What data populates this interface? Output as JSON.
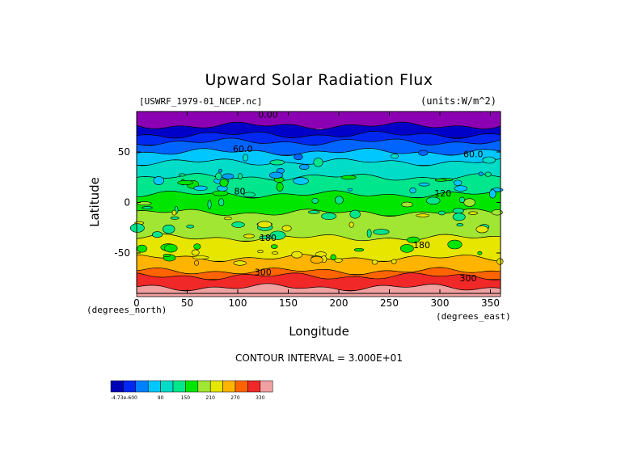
{
  "chart_data": {
    "type": "heatmap",
    "title": "Upward Solar Radiation Flux",
    "source_label": "[USWRF_1979-01_NCEP.nc]",
    "units_label": "(units:W/m^2)",
    "xlabel": "Longitude",
    "ylabel": "Latitude",
    "x_unit_label": "(degrees_east)",
    "y_unit_label": "(degrees_north)",
    "xlim": [
      0,
      360
    ],
    "ylim": [
      -90,
      90
    ],
    "x_ticks": [
      0,
      50,
      100,
      150,
      200,
      250,
      300,
      350
    ],
    "y_ticks": [
      -50,
      0,
      50
    ],
    "x_tick_labels": [
      "0",
      "50",
      "100",
      "150",
      "200",
      "250",
      "300",
      "350"
    ],
    "y_tick_labels": [
      "-50",
      "0",
      "50"
    ],
    "contour_interval_label": "CONTOUR INTERVAL = 3.000E+01",
    "contour_labels": [
      {
        "text": "0.00",
        "lon": 130,
        "lat": 84
      },
      {
        "text": "60.0",
        "lon": 105,
        "lat": 50
      },
      {
        "text": "60.0",
        "lon": 333,
        "lat": 45
      },
      {
        "text": "80",
        "lon": 102,
        "lat": 8
      },
      {
        "text": "120",
        "lon": 303,
        "lat": 6
      },
      {
        "text": "180",
        "lon": 130,
        "lat": -38
      },
      {
        "text": "180",
        "lon": 282,
        "lat": -45
      },
      {
        "text": "300",
        "lon": 125,
        "lat": -72
      },
      {
        "text": "300",
        "lon": 328,
        "lat": -78
      }
    ],
    "colorbar": {
      "colors": [
        "#0000b4",
        "#0028f0",
        "#0080ff",
        "#00c8ff",
        "#00dcc8",
        "#00e68c",
        "#00e600",
        "#a0e632",
        "#e6e600",
        "#ffb400",
        "#ff6400",
        "#f02828",
        "#f0a0a0"
      ],
      "tick_labels": [
        "-4.73e-600",
        "90",
        "150",
        "210",
        "270",
        "330"
      ]
    },
    "latitude_bands": [
      {
        "lat_from": 76,
        "lat_to": 90,
        "value": 0
      },
      {
        "lat_from": 67,
        "lat_to": 76,
        "value": 30
      },
      {
        "lat_from": 60,
        "lat_to": 67,
        "value": 45
      },
      {
        "lat_from": 50,
        "lat_to": 60,
        "value": 60
      },
      {
        "lat_from": 40,
        "lat_to": 50,
        "value": 90
      },
      {
        "lat_from": 25,
        "lat_to": 40,
        "value": 105
      },
      {
        "lat_from": 8,
        "lat_to": 25,
        "value": 125
      },
      {
        "lat_from": -10,
        "lat_to": 8,
        "value": 150
      },
      {
        "lat_from": -35,
        "lat_to": -10,
        "value": 170
      },
      {
        "lat_from": -55,
        "lat_to": -35,
        "value": 185
      },
      {
        "lat_from": -68,
        "lat_to": -55,
        "value": 220
      },
      {
        "lat_from": -73,
        "lat_to": -68,
        "value": 280
      },
      {
        "lat_from": -84,
        "lat_to": -73,
        "value": 320
      },
      {
        "lat_from": -90,
        "lat_to": -84,
        "value": 340
      }
    ]
  }
}
